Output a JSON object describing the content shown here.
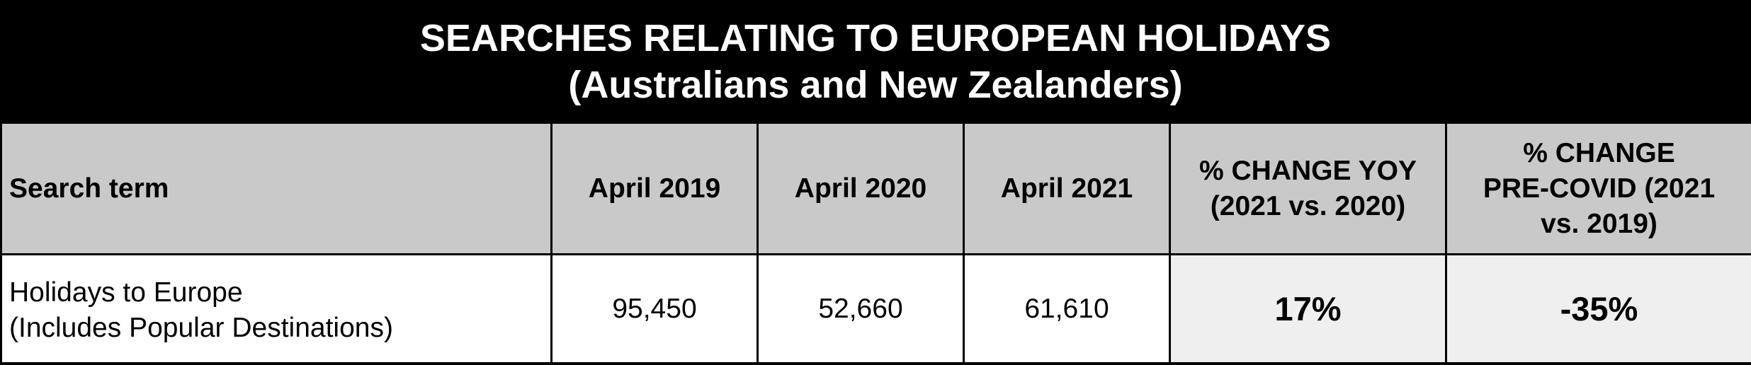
{
  "title": {
    "line1": "SEARCHES RELATING TO EUROPEAN HOLIDAYS",
    "line2": "(Australians and New Zealanders)"
  },
  "table": {
    "headers": {
      "search_term": "Search term",
      "april_2019": "April 2019",
      "april_2020": "April 2020",
      "april_2021": "April 2021",
      "yoy_line1": "% CHANGE YOY",
      "yoy_line2": "(2021 vs. 2020)",
      "precovid_line1": "% CHANGE",
      "precovid_line2": "PRE-COVID (2021",
      "precovid_line3": "vs. 2019)"
    },
    "rows": [
      {
        "term_line1": "Holidays to Europe",
        "term_line2": "(Includes Popular Destinations)",
        "april_2019": "95,450",
        "april_2020": "52,660",
        "april_2021": "61,610",
        "change_yoy": "17%",
        "change_precovid": "-35%"
      }
    ]
  },
  "colors": {
    "background": "#000000",
    "header_fill": "#c9c9c9",
    "change_fill": "#efefef",
    "cell_fill": "#ffffff"
  }
}
